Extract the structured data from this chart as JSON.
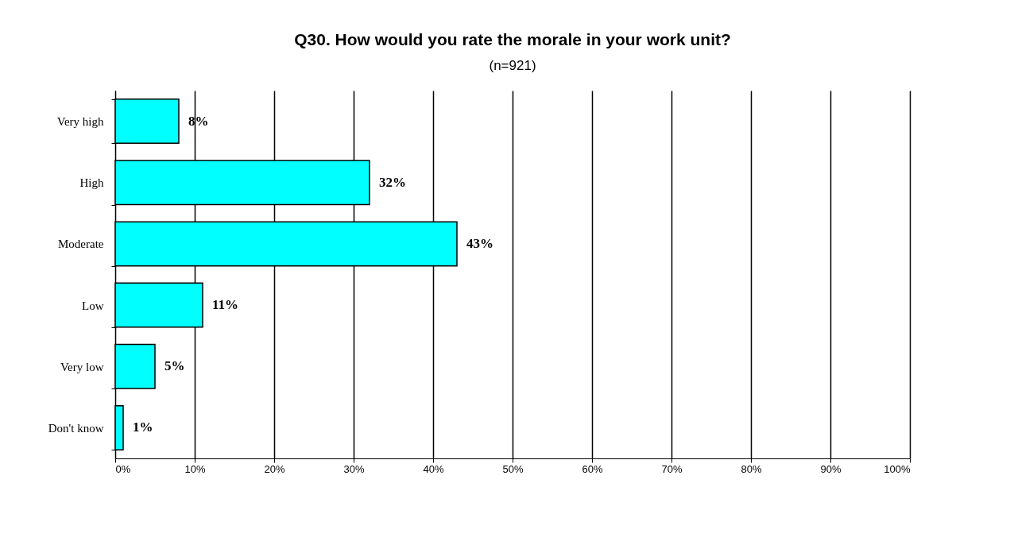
{
  "chart_data": {
    "type": "bar",
    "orientation": "horizontal",
    "title": "Q30. How would you rate the morale in your work unit?",
    "subtitle": "(n=921)",
    "categories": [
      "Very high",
      "High",
      "Moderate",
      "Low",
      "Very low",
      "Don't know"
    ],
    "values": [
      8,
      32,
      43,
      11,
      5,
      1
    ],
    "value_labels": [
      "8%",
      "32%",
      "43%",
      "11%",
      "5%",
      "1%"
    ],
    "color": "#00ffff",
    "xlim": [
      0,
      100
    ],
    "xticks": [
      {
        "value": 0,
        "label": "0%"
      },
      {
        "value": 10,
        "label": "10%"
      },
      {
        "value": 20,
        "label": "20%"
      },
      {
        "value": 30,
        "label": "30%"
      },
      {
        "value": 40,
        "label": "40%"
      },
      {
        "value": 50,
        "label": "50%"
      },
      {
        "value": 60,
        "label": "60%"
      },
      {
        "value": 70,
        "label": "70%"
      },
      {
        "value": 80,
        "label": "80%"
      },
      {
        "value": 90,
        "label": "90%"
      },
      {
        "value": 100,
        "label": "100%"
      }
    ],
    "grid": "x"
  }
}
